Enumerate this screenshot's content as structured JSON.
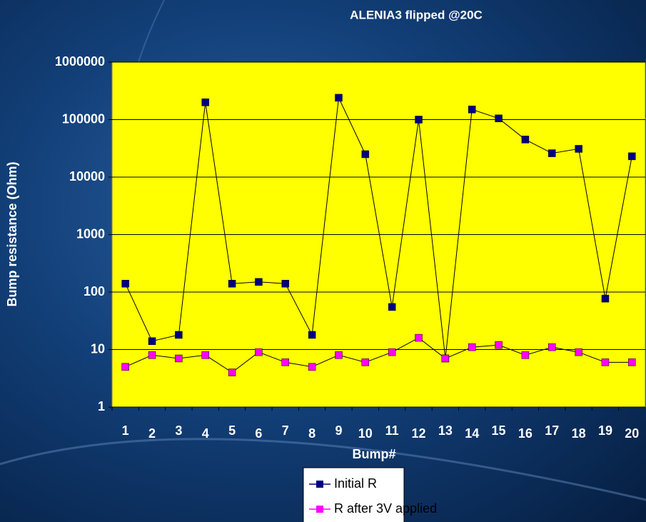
{
  "chart_data": {
    "type": "line",
    "title": "ALENIA3 flipped @20C",
    "x_label": "Bump#",
    "y_label": "Bump resistance (Ohm)",
    "categories": [
      "1",
      "2",
      "3",
      "4",
      "5",
      "6",
      "7",
      "8",
      "9",
      "10",
      "11",
      "12",
      "13",
      "14",
      "15",
      "16",
      "17",
      "18",
      "19",
      "20"
    ],
    "series": [
      {
        "name": "Initial R",
        "color": "#000080",
        "values": [
          140,
          14,
          18,
          200000,
          140,
          150,
          140,
          18,
          240000,
          25000,
          55,
          100000,
          7,
          150000,
          105000,
          45000,
          26000,
          31000,
          77,
          23000
        ]
      },
      {
        "name": "R after 3V applied",
        "color": "#ff00ff",
        "values": [
          5,
          8,
          7,
          8,
          4,
          9,
          6,
          5,
          8,
          6,
          9,
          16,
          7,
          11,
          12,
          8,
          11,
          9,
          6,
          6
        ]
      }
    ],
    "ylim": [
      1,
      1000000
    ],
    "yticks": [
      1,
      10,
      100,
      1000,
      10000,
      100000,
      1000000
    ],
    "y_scale": "log",
    "grid": true,
    "plot_background": "#ffff00",
    "legend_position": "bottom"
  }
}
